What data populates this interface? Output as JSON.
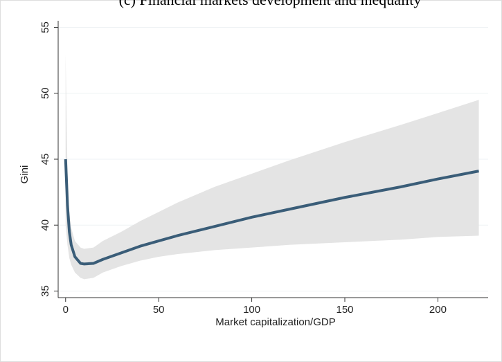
{
  "chart_data": {
    "type": "line",
    "title": "(c) Financial markets development and inequality",
    "x_label": "Market capitalization/GDP",
    "y_label": "Gini",
    "x": [
      0,
      1,
      2,
      3,
      5,
      8,
      10,
      15,
      20,
      30,
      40,
      50,
      60,
      80,
      100,
      120,
      150,
      180,
      200,
      222
    ],
    "values": [
      45,
      41.5,
      39.5,
      38.5,
      37.6,
      37.1,
      37.05,
      37.1,
      37.4,
      37.9,
      38.4,
      38.8,
      39.2,
      39.9,
      40.6,
      41.2,
      42.1,
      42.9,
      43.5,
      44.1
    ],
    "upper": [
      53,
      44,
      41,
      39.8,
      38.8,
      38.3,
      38.2,
      38.3,
      38.8,
      39.5,
      40.3,
      41,
      41.7,
      42.9,
      43.9,
      44.9,
      46.3,
      47.6,
      48.5,
      49.5
    ],
    "lower": [
      40,
      38.5,
      37.5,
      37,
      36.4,
      36,
      35.9,
      36,
      36.4,
      36.9,
      37.3,
      37.6,
      37.8,
      38.1,
      38.3,
      38.5,
      38.7,
      38.9,
      39.1,
      39.2
    ],
    "color": "#3a5d78",
    "band_color": "#e4e4e4",
    "xlim": [
      -4,
      227
    ],
    "ylim": [
      34.5,
      55.5
    ],
    "xticks": [
      0,
      50,
      100,
      150,
      200
    ],
    "yticks": [
      35,
      40,
      45,
      50,
      55
    ],
    "grid": true
  }
}
